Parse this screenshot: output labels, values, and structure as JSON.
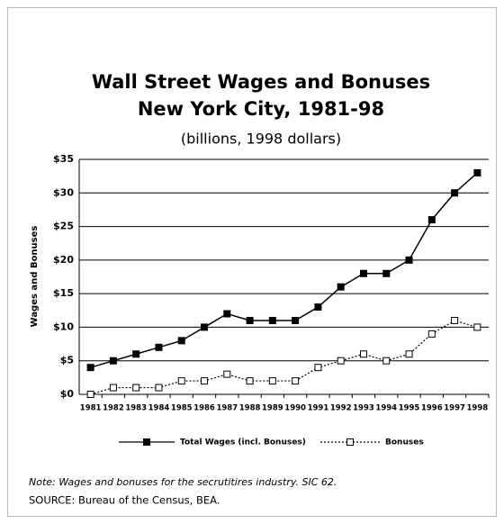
{
  "chart_data": {
    "type": "line",
    "title": [
      "Wall Street Wages and Bonuses",
      "New York City, 1981-98"
    ],
    "subtitle": "(billions, 1998 dollars)",
    "y_label": "Wages and Bonuses",
    "categories": [
      "1981",
      "1982",
      "1983",
      "1984",
      "1985",
      "1986",
      "1987",
      "1988",
      "1989",
      "1990",
      "1991",
      "1992",
      "1993",
      "1994",
      "1995",
      "1996",
      "1997",
      "1998"
    ],
    "series": [
      {
        "name": "Total Wages (incl. Bonuses)",
        "color": "#000000",
        "line_style": "solid",
        "marker": "filled",
        "values": [
          4,
          5,
          6,
          7,
          8,
          10,
          12,
          11,
          11,
          11,
          13,
          16,
          18,
          18,
          20,
          26,
          30,
          33
        ]
      },
      {
        "name": "Bonuses",
        "color": "#000000",
        "line_style": "dotted",
        "marker": "open",
        "values": [
          0,
          1,
          1,
          1,
          2,
          2,
          3,
          2,
          2,
          2,
          4,
          5,
          6,
          5,
          6,
          9,
          11,
          10
        ]
      }
    ],
    "ylim": [
      0,
      35
    ],
    "yticks": [
      {
        "value": 0,
        "label": "$0"
      },
      {
        "value": 5,
        "label": "$5"
      },
      {
        "value": 10,
        "label": "$10"
      },
      {
        "value": 15,
        "label": "$15"
      },
      {
        "value": 20,
        "label": "$20"
      },
      {
        "value": 25,
        "label": "$25"
      },
      {
        "value": 30,
        "label": "$30"
      },
      {
        "value": 35,
        "label": "$35"
      }
    ],
    "grid": true,
    "legend": "bottom",
    "note": "Note: Wages and bonuses for the secrutitires industry. SIC 62.",
    "source": "SOURCE: Bureau of the Census, BEA."
  }
}
